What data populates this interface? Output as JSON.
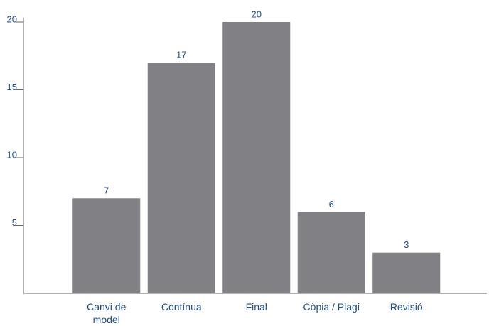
{
  "chart_data": {
    "type": "bar",
    "categories": [
      "Canvi de model",
      "Contínua",
      "Final",
      "Còpia / Plagi",
      "Revisió"
    ],
    "values": [
      7,
      17,
      20,
      6,
      3
    ],
    "color": "#808085",
    "label_color": "#1f4e8c",
    "ylim": [
      0,
      20
    ],
    "yticks": [
      5,
      10,
      15,
      20
    ],
    "grid": false
  }
}
